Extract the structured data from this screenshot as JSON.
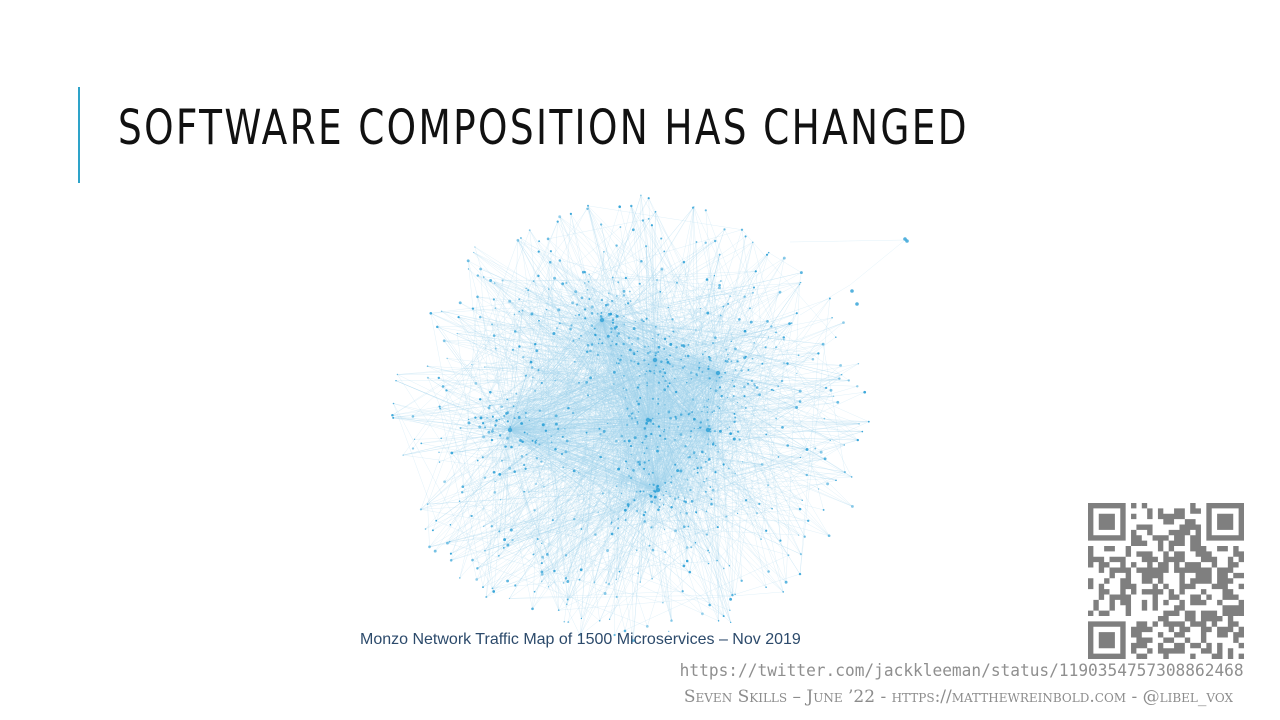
{
  "slide": {
    "title": "Software Composition Has Changed"
  },
  "figure": {
    "caption": "Monzo Network Traffic Map of 1500 Microservices – Nov 2019",
    "node_color": "#2a9fd6",
    "edge_color": "#9fd3ec"
  },
  "qr": {
    "color": "#7f7f7f"
  },
  "source": {
    "url": "https://twitter.com/jackkleeman/status/1190354757308862468"
  },
  "footer": {
    "text": "Seven Skills – June ’22 - https://matthewreinbold.com - @libel_vox"
  },
  "colors": {
    "accent": "#2ea3c9",
    "title": "#111111"
  }
}
